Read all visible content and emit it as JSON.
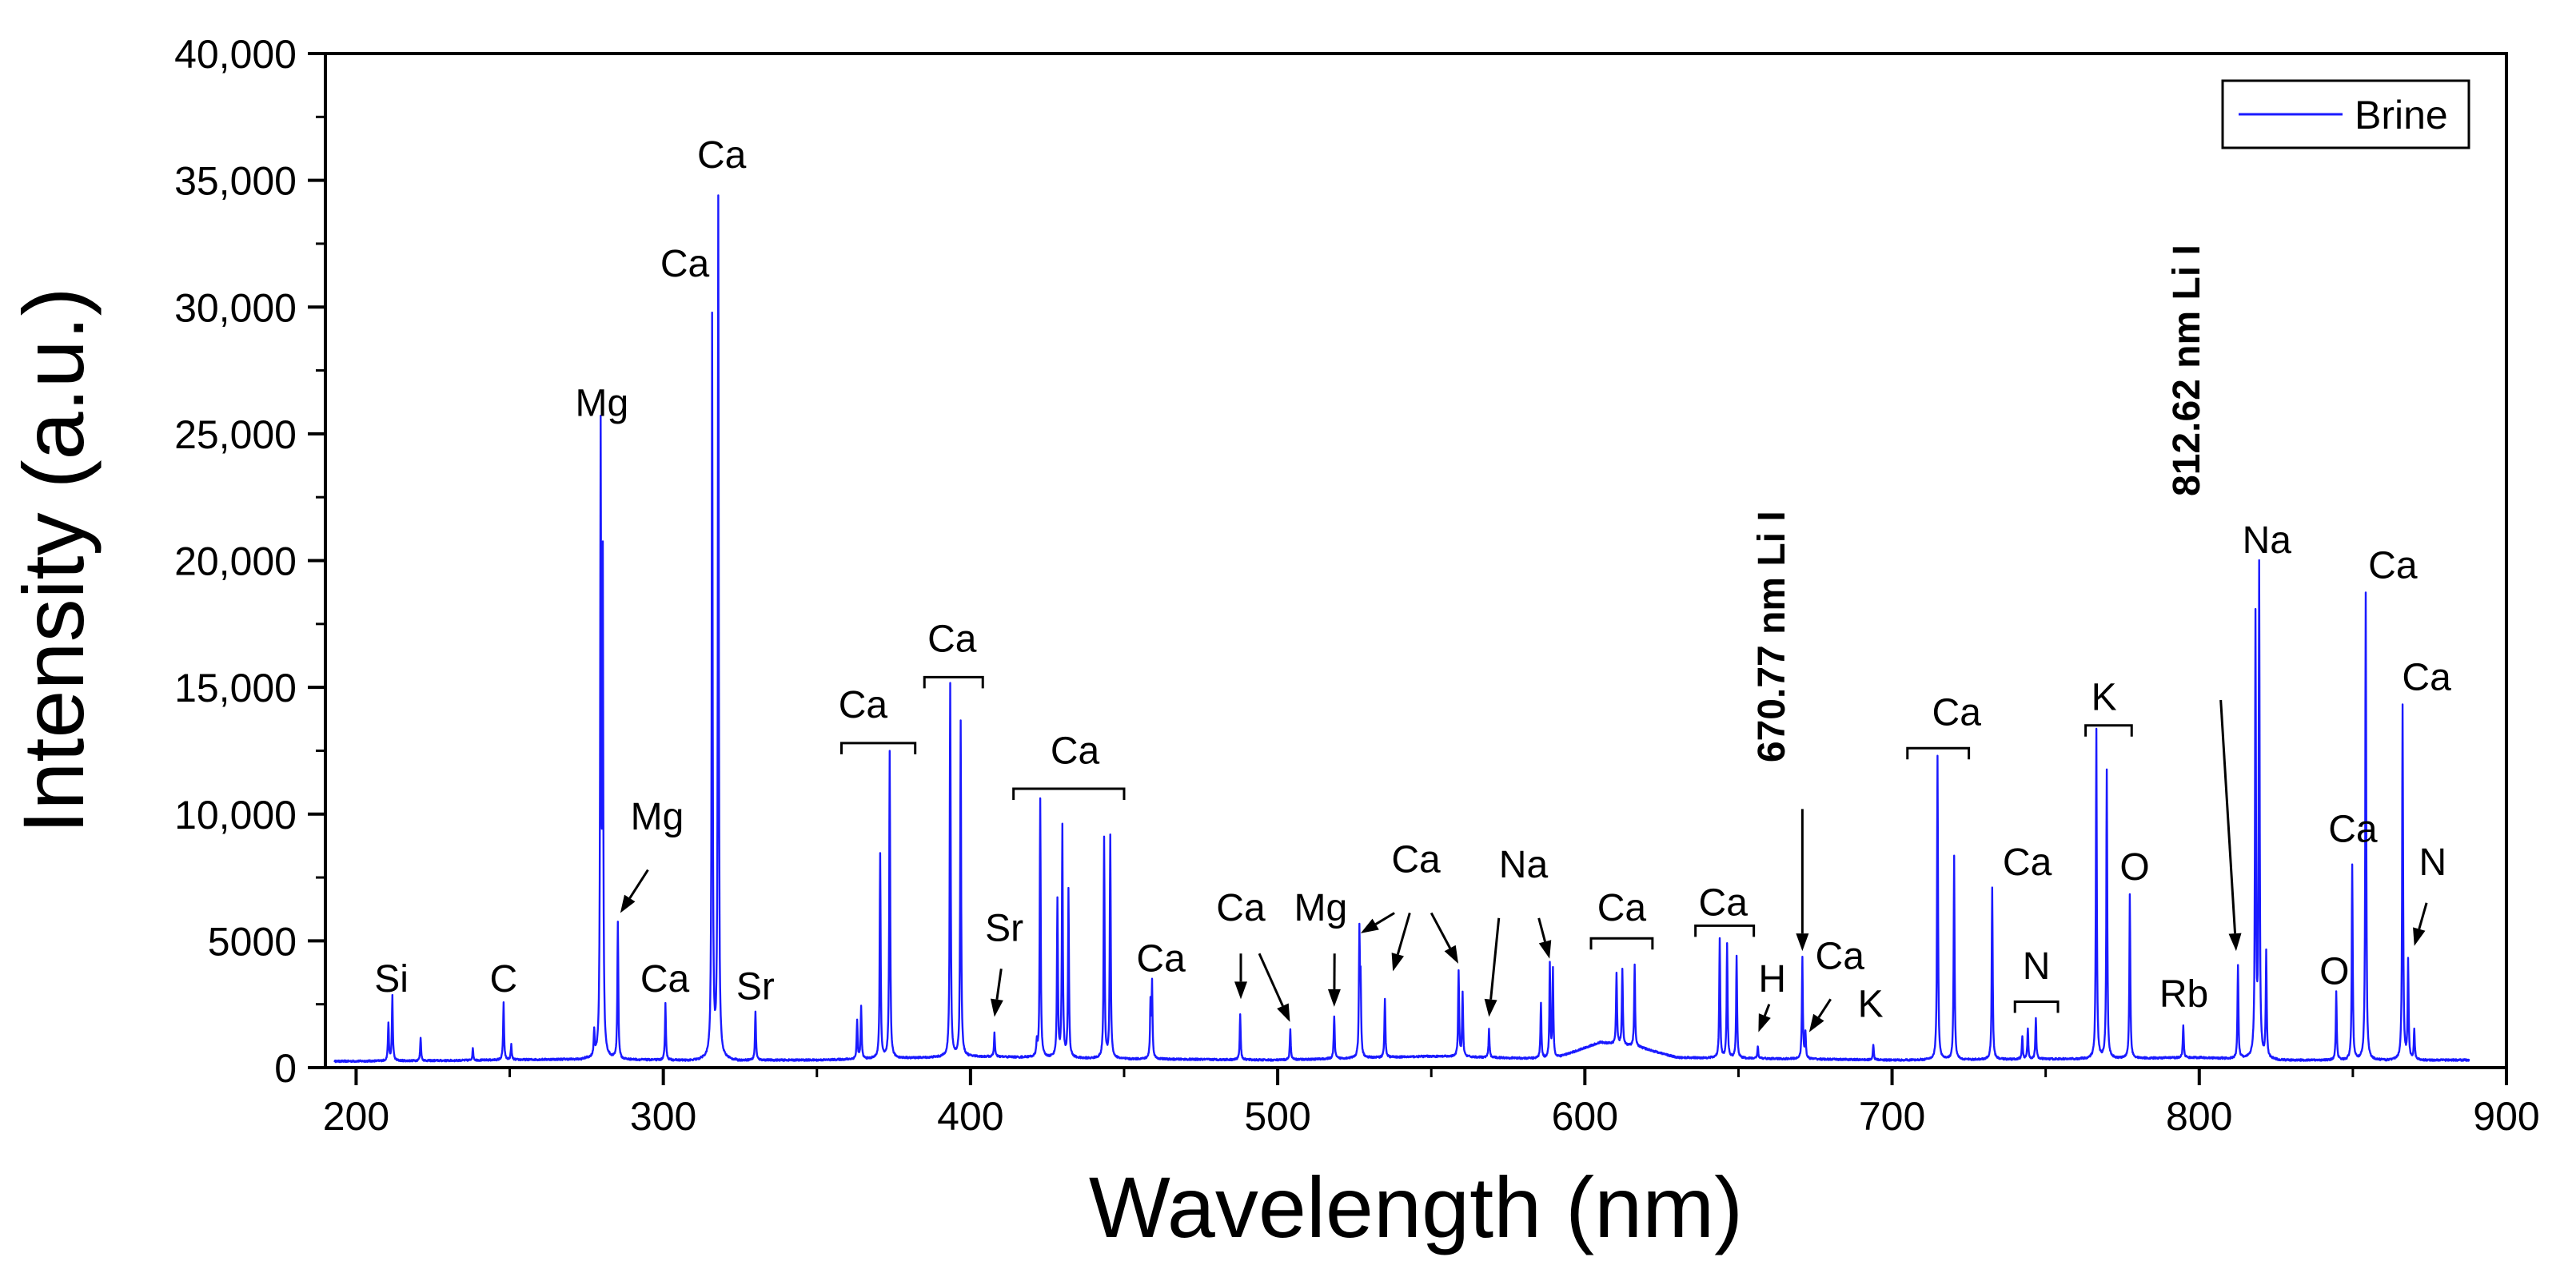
{
  "chart_data": {
    "type": "line",
    "title": "",
    "xlabel": "Wavelength (nm)",
    "ylabel": "Intensity (a.u.)",
    "xlim": [
      190,
      900
    ],
    "ylim": [
      0,
      40000
    ],
    "x_ticks": [
      200,
      300,
      400,
      500,
      600,
      700,
      800,
      900
    ],
    "x_tick_labels": [
      "200",
      "300",
      "400",
      "500",
      "600",
      "700",
      "800",
      "900"
    ],
    "y_ticks": [
      0,
      5000,
      10000,
      15000,
      20000,
      25000,
      30000,
      35000,
      40000
    ],
    "y_tick_labels": [
      "0",
      "5000",
      "10,000",
      "15,000",
      "20,000",
      "25,000",
      "30,000",
      "35,000",
      "40,000"
    ],
    "legend": {
      "position": "top-right",
      "entries": [
        "Brine"
      ]
    },
    "series": [
      {
        "name": "Brine",
        "color": "#1a1aff",
        "baseline": [
          [
            193,
            250
          ],
          [
            230,
            280
          ],
          [
            280,
            350
          ],
          [
            300,
            300
          ],
          [
            350,
            300
          ],
          [
            400,
            450
          ],
          [
            450,
            350
          ],
          [
            500,
            300
          ],
          [
            550,
            450
          ],
          [
            590,
            350
          ],
          [
            605,
            1000
          ],
          [
            618,
            800
          ],
          [
            630,
            400
          ],
          [
            700,
            300
          ],
          [
            760,
            350
          ],
          [
            800,
            400
          ],
          [
            830,
            300
          ],
          [
            888,
            300
          ]
        ],
        "peaks": [
          [
            210.5,
            1500
          ],
          [
            211.8,
            2550
          ],
          [
            221,
            900
          ],
          [
            238,
            450
          ],
          [
            248,
            2250
          ],
          [
            250.5,
            600
          ],
          [
            277.5,
            1000
          ],
          [
            279.6,
            24200
          ],
          [
            280.3,
            18900
          ],
          [
            285.2,
            5350
          ],
          [
            300.7,
            2250
          ],
          [
            315.9,
            29200
          ],
          [
            317.9,
            33900
          ],
          [
            330.0,
            1900
          ],
          [
            363.1,
            1500
          ],
          [
            364.4,
            2050
          ],
          [
            370.6,
            8100
          ],
          [
            373.7,
            12100
          ],
          [
            393.4,
            14700
          ],
          [
            396.8,
            13200
          ],
          [
            407.8,
            950
          ],
          [
            421.6,
            600
          ],
          [
            422.7,
            10200
          ],
          [
            428.3,
            6200
          ],
          [
            429.9,
            9100
          ],
          [
            431.9,
            6600
          ],
          [
            443.5,
            8700
          ],
          [
            445.5,
            8800
          ],
          [
            458.6,
            2100
          ],
          [
            459.1,
            2900
          ],
          [
            487.8,
            1800
          ],
          [
            504.1,
            1200
          ],
          [
            518.4,
            1700
          ],
          [
            526.6,
            4800
          ],
          [
            527.0,
            2800
          ],
          [
            534.9,
            2300
          ],
          [
            558.9,
            3400
          ],
          [
            560.2,
            2500
          ],
          [
            568.8,
            1100
          ],
          [
            585.7,
            2200
          ],
          [
            588.6,
            3700
          ],
          [
            589.6,
            3500
          ],
          [
            610.3,
            2800
          ],
          [
            612.2,
            3000
          ],
          [
            616.2,
            3200
          ],
          [
            643.9,
            4700
          ],
          [
            646.3,
            4500
          ],
          [
            649.4,
            4000
          ],
          [
            656.3,
            500
          ],
          [
            670.8,
            4000
          ],
          [
            671.8,
            1000
          ],
          [
            693.9,
            600
          ],
          [
            714.8,
            12000
          ],
          [
            720.2,
            8000
          ],
          [
            732.6,
            6800
          ],
          [
            742.4,
            900
          ],
          [
            744.2,
            1200
          ],
          [
            746.8,
            1600
          ],
          [
            766.5,
            13000
          ],
          [
            769.9,
            11400
          ],
          [
            777.4,
            6500
          ],
          [
            794.8,
            1300
          ],
          [
            812.6,
            3700
          ],
          [
            818.3,
            17300
          ],
          [
            819.5,
            19300
          ],
          [
            821.8,
            4200
          ],
          [
            844.6,
            2700
          ],
          [
            849.8,
            7700
          ],
          [
            854.2,
            18400
          ],
          [
            866.2,
            14000
          ],
          [
            868.0,
            3900
          ],
          [
            870.0,
            1200
          ]
        ]
      }
    ],
    "annotations": [
      {
        "text": "Si",
        "x": 211.5,
        "y": 3000
      },
      {
        "text": "C",
        "x": 248,
        "y": 3000
      },
      {
        "text": "Mg",
        "x": 280,
        "y": 25700
      },
      {
        "text": "Mg",
        "x": 298,
        "y": 9400
      },
      {
        "text": "Ca",
        "x": 300.5,
        "y": 3000
      },
      {
        "text": "Sr",
        "x": 330,
        "y": 2700
      },
      {
        "text": "Ca",
        "x": 307,
        "y": 31200
      },
      {
        "text": "Ca",
        "x": 319,
        "y": 35500
      },
      {
        "text": "Ca",
        "x": 365,
        "y": 13800
      },
      {
        "text": "Ca",
        "x": 394,
        "y": 16400
      },
      {
        "text": "Sr",
        "x": 411,
        "y": 5000
      },
      {
        "text": "Ca",
        "x": 434,
        "y": 12000
      },
      {
        "text": "Ca",
        "x": 462,
        "y": 3800
      },
      {
        "text": "Ca",
        "x": 488,
        "y": 5800
      },
      {
        "text": "Mg",
        "x": 514,
        "y": 5800
      },
      {
        "text": "Ca",
        "x": 545,
        "y": 7700
      },
      {
        "text": "Na",
        "x": 580,
        "y": 7500
      },
      {
        "text": "Ca",
        "x": 612,
        "y": 5800
      },
      {
        "text": "Ca",
        "x": 645,
        "y": 6000
      },
      {
        "text": "H",
        "x": 661,
        "y": 3000
      },
      {
        "text": "Ca",
        "x": 683,
        "y": 3900
      },
      {
        "text": "K",
        "x": 693,
        "y": 2000
      },
      {
        "text": "Ca",
        "x": 721,
        "y": 13500
      },
      {
        "text": "Ca",
        "x": 744,
        "y": 7600
      },
      {
        "text": "N",
        "x": 747,
        "y": 3500
      },
      {
        "text": "K",
        "x": 769,
        "y": 14100
      },
      {
        "text": "O",
        "x": 779,
        "y": 7400
      },
      {
        "text": "Rb",
        "x": 795,
        "y": 2400
      },
      {
        "text": "Na",
        "x": 822,
        "y": 20300
      },
      {
        "text": "Ca",
        "x": 850,
        "y": 8900
      },
      {
        "text": "Ca",
        "x": 863,
        "y": 19300
      },
      {
        "text": "O",
        "x": 844,
        "y": 3300
      },
      {
        "text": "Ca",
        "x": 874,
        "y": 14900
      },
      {
        "text": "N",
        "x": 876,
        "y": 7600
      },
      {
        "text": "670.77 nm Li I",
        "x": 665,
        "y": 17000,
        "bold": true,
        "rotated": true
      },
      {
        "text": "812.62 nm Li I",
        "x": 800,
        "y": 27500,
        "bold": true,
        "rotated": true
      }
    ],
    "arrows": [
      {
        "from": [
          295,
          7800
        ],
        "to": [
          286,
          6100
        ]
      },
      {
        "from": [
          410,
          3900
        ],
        "to": [
          407.8,
          2000
        ]
      },
      {
        "from": [
          488,
          4500
        ],
        "to": [
          488,
          2700
        ]
      },
      {
        "from": [
          494,
          4500
        ],
        "to": [
          504,
          1800
        ]
      },
      {
        "from": [
          518.5,
          4500
        ],
        "to": [
          518.4,
          2400
        ]
      },
      {
        "from": [
          538,
          6100
        ],
        "to": [
          527,
          5300
        ]
      },
      {
        "from": [
          543,
          6100
        ],
        "to": [
          537.5,
          3800
        ]
      },
      {
        "from": [
          550,
          6100
        ],
        "to": [
          558.8,
          4100
        ]
      },
      {
        "from": [
          572,
          5900
        ],
        "to": [
          568.8,
          2000
        ]
      },
      {
        "from": [
          585,
          5900
        ],
        "to": [
          588.5,
          4300
        ]
      },
      {
        "from": [
          670.8,
          10200
        ],
        "to": [
          670.8,
          4600
        ]
      },
      {
        "from": [
          660,
          2500
        ],
        "to": [
          656.5,
          1400
        ]
      },
      {
        "from": [
          680,
          2700
        ],
        "to": [
          673,
          1400
        ]
      },
      {
        "from": [
          807,
          14500
        ],
        "to": [
          812,
          4600
        ]
      },
      {
        "from": [
          874,
          6500
        ],
        "to": [
          870,
          4800
        ]
      }
    ],
    "brackets": [
      {
        "x1": 358,
        "x2": 382,
        "y": 12800
      },
      {
        "x1": 385,
        "x2": 404,
        "y": 15400
      },
      {
        "x1": 414,
        "x2": 450,
        "y": 11000
      },
      {
        "x1": 602,
        "x2": 622,
        "y": 5100
      },
      {
        "x1": 636,
        "x2": 655,
        "y": 5600
      },
      {
        "x1": 705,
        "x2": 725,
        "y": 12600
      },
      {
        "x1": 740,
        "x2": 754,
        "y": 2600
      },
      {
        "x1": 763,
        "x2": 778,
        "y": 13500
      }
    ]
  }
}
